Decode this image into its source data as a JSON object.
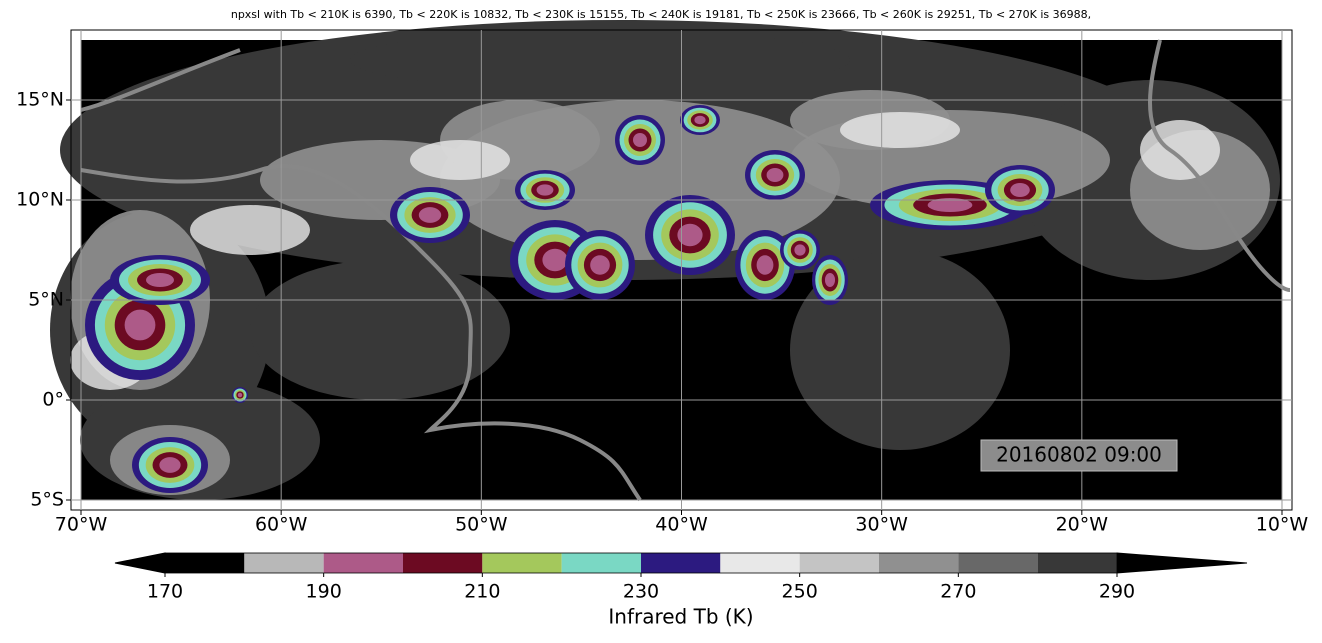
{
  "title": "npxsl with Tb < 210K is 6390,  Tb < 220K is 10832,  Tb < 230K is 15155,  Tb < 240K is 19181,  Tb < 250K is 23666,  Tb < 260K is 29251,  Tb < 270K is 36988,",
  "map": {
    "xlim": [
      -70.5,
      -9.5
    ],
    "ylim": [
      -5.5,
      18.5
    ],
    "xticks": [
      {
        "value": -70,
        "label": "70°W"
      },
      {
        "value": -60,
        "label": "60°W"
      },
      {
        "value": -50,
        "label": "50°W"
      },
      {
        "value": -40,
        "label": "40°W"
      },
      {
        "value": -30,
        "label": "30°W"
      },
      {
        "value": -20,
        "label": "20°W"
      },
      {
        "value": -10,
        "label": "10°W"
      }
    ],
    "yticks": [
      {
        "value": 15,
        "label": "15°N"
      },
      {
        "value": 10,
        "label": "10°N"
      },
      {
        "value": 5,
        "label": "5°N"
      },
      {
        "value": 0,
        "label": "0°"
      },
      {
        "value": -5,
        "label": "5°S"
      }
    ],
    "grid": true,
    "annotation": "20160802 09:00"
  },
  "colorbar": {
    "label": "Infrared Tb (K)",
    "levels": [
      170,
      180,
      190,
      200,
      210,
      220,
      230,
      240,
      250,
      260,
      270,
      280,
      290
    ],
    "colors": [
      "#000000",
      "#b8b8b8",
      "#ad5a88",
      "#6c0a22",
      "#a4c85c",
      "#7ad8c4",
      "#2c1a80",
      "#e8e8e8",
      "#c4c4c4",
      "#909090",
      "#686868",
      "#383838"
    ],
    "under_color": "#000000",
    "over_color": "#000000",
    "ticks": [
      170,
      190,
      210,
      230,
      250,
      270,
      290
    ]
  }
}
